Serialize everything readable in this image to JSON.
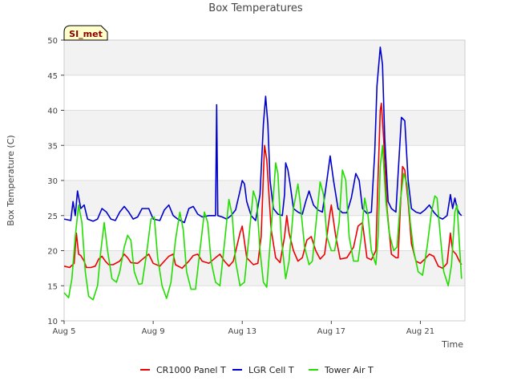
{
  "chart_data": {
    "type": "line",
    "title": "Box Temperatures",
    "xlabel": "Time",
    "ylabel": "Box Temperature (C)",
    "site_label": "SI_met",
    "x_units": "days since Aug 5",
    "xlim": [
      0,
      18
    ],
    "ylim": [
      10,
      50
    ],
    "y_ticks": [
      10,
      15,
      20,
      25,
      30,
      35,
      40,
      45,
      50
    ],
    "y_tick_labels": [
      "10",
      "15",
      "20",
      "25",
      "30",
      "35",
      "40",
      "45",
      "50"
    ],
    "x_ticks": [
      0,
      4,
      8,
      12,
      16
    ],
    "x_tick_labels": [
      "Aug 5",
      "Aug 9",
      "Aug 13",
      "Aug 17",
      "Aug 21"
    ],
    "legend_position": "bottom",
    "series": [
      {
        "name": "CR1000 Panel T",
        "color": "#ee0000",
        "points": [
          [
            0.0,
            17.8
          ],
          [
            0.25,
            17.6
          ],
          [
            0.45,
            18.2
          ],
          [
            0.55,
            22.5
          ],
          [
            0.65,
            19.5
          ],
          [
            0.75,
            19.3
          ],
          [
            0.9,
            18.5
          ],
          [
            1.0,
            17.6
          ],
          [
            1.2,
            17.6
          ],
          [
            1.4,
            17.8
          ],
          [
            1.55,
            18.8
          ],
          [
            1.7,
            19.2
          ],
          [
            1.85,
            18.5
          ],
          [
            2.0,
            18.0
          ],
          [
            2.2,
            18.0
          ],
          [
            2.5,
            18.5
          ],
          [
            2.7,
            19.5
          ],
          [
            2.85,
            19.0
          ],
          [
            3.0,
            18.3
          ],
          [
            3.3,
            18.2
          ],
          [
            3.6,
            19.0
          ],
          [
            3.8,
            19.5
          ],
          [
            4.0,
            18.2
          ],
          [
            4.3,
            17.8
          ],
          [
            4.5,
            18.5
          ],
          [
            4.7,
            19.2
          ],
          [
            4.9,
            19.5
          ],
          [
            5.0,
            18.0
          ],
          [
            5.3,
            17.5
          ],
          [
            5.6,
            18.5
          ],
          [
            5.8,
            19.3
          ],
          [
            6.0,
            19.5
          ],
          [
            6.2,
            18.5
          ],
          [
            6.5,
            18.2
          ],
          [
            6.8,
            19.0
          ],
          [
            7.0,
            19.5
          ],
          [
            7.2,
            18.5
          ],
          [
            7.4,
            17.8
          ],
          [
            7.6,
            18.5
          ],
          [
            7.9,
            22.5
          ],
          [
            8.0,
            23.5
          ],
          [
            8.2,
            19.0
          ],
          [
            8.5,
            18.0
          ],
          [
            8.7,
            18.2
          ],
          [
            8.85,
            22.0
          ],
          [
            9.0,
            35.0
          ],
          [
            9.1,
            33.0
          ],
          [
            9.3,
            23.0
          ],
          [
            9.5,
            19.0
          ],
          [
            9.7,
            18.3
          ],
          [
            9.9,
            22.0
          ],
          [
            10.0,
            25.0
          ],
          [
            10.1,
            22.5
          ],
          [
            10.3,
            20.0
          ],
          [
            10.5,
            18.5
          ],
          [
            10.7,
            19.0
          ],
          [
            10.9,
            21.5
          ],
          [
            11.1,
            22.0
          ],
          [
            11.3,
            20.0
          ],
          [
            11.5,
            18.8
          ],
          [
            11.7,
            19.5
          ],
          [
            11.9,
            24.5
          ],
          [
            12.0,
            26.5
          ],
          [
            12.2,
            22.0
          ],
          [
            12.4,
            18.8
          ],
          [
            12.7,
            19.0
          ],
          [
            13.0,
            20.5
          ],
          [
            13.2,
            23.5
          ],
          [
            13.4,
            24.0
          ],
          [
            13.6,
            19.0
          ],
          [
            13.8,
            18.7
          ],
          [
            14.0,
            20.0
          ],
          [
            14.1,
            30.5
          ],
          [
            14.2,
            40.0
          ],
          [
            14.25,
            41.0
          ],
          [
            14.35,
            36.0
          ],
          [
            14.5,
            26.0
          ],
          [
            14.7,
            19.5
          ],
          [
            14.9,
            19.0
          ],
          [
            15.0,
            19.0
          ],
          [
            15.1,
            26.0
          ],
          [
            15.2,
            32.0
          ],
          [
            15.3,
            31.5
          ],
          [
            15.45,
            27.0
          ],
          [
            15.6,
            21.0
          ],
          [
            15.8,
            18.5
          ],
          [
            16.0,
            18.2
          ],
          [
            16.2,
            18.8
          ],
          [
            16.4,
            19.5
          ],
          [
            16.6,
            19.2
          ],
          [
            16.8,
            17.8
          ],
          [
            17.0,
            17.5
          ],
          [
            17.2,
            18.2
          ],
          [
            17.35,
            22.5
          ],
          [
            17.45,
            20.0
          ],
          [
            17.6,
            19.5
          ],
          [
            17.75,
            18.5
          ],
          [
            17.85,
            18.0
          ]
        ]
      },
      {
        "name": "LGR Cell T",
        "color": "#0000cc",
        "points": [
          [
            0.0,
            24.5
          ],
          [
            0.3,
            24.3
          ],
          [
            0.4,
            27.0
          ],
          [
            0.5,
            25.0
          ],
          [
            0.6,
            28.5
          ],
          [
            0.75,
            26.0
          ],
          [
            0.9,
            26.5
          ],
          [
            1.05,
            24.5
          ],
          [
            1.3,
            24.2
          ],
          [
            1.5,
            24.5
          ],
          [
            1.7,
            26.0
          ],
          [
            1.9,
            25.5
          ],
          [
            2.1,
            24.5
          ],
          [
            2.3,
            24.3
          ],
          [
            2.5,
            25.5
          ],
          [
            2.7,
            26.3
          ],
          [
            2.9,
            25.5
          ],
          [
            3.1,
            24.5
          ],
          [
            3.3,
            24.8
          ],
          [
            3.5,
            26.0
          ],
          [
            3.8,
            26.0
          ],
          [
            4.0,
            24.5
          ],
          [
            4.3,
            24.3
          ],
          [
            4.5,
            25.8
          ],
          [
            4.7,
            26.5
          ],
          [
            4.9,
            25.0
          ],
          [
            5.1,
            24.5
          ],
          [
            5.4,
            24.0
          ],
          [
            5.6,
            26.0
          ],
          [
            5.8,
            26.3
          ],
          [
            6.0,
            25.2
          ],
          [
            6.2,
            24.8
          ],
          [
            6.5,
            25.0
          ],
          [
            6.8,
            25.0
          ],
          [
            6.85,
            40.8
          ],
          [
            6.9,
            25.0
          ],
          [
            7.1,
            24.8
          ],
          [
            7.3,
            24.5
          ],
          [
            7.5,
            25.0
          ],
          [
            7.7,
            25.8
          ],
          [
            7.9,
            28.5
          ],
          [
            8.0,
            30.0
          ],
          [
            8.1,
            29.5
          ],
          [
            8.2,
            27.0
          ],
          [
            8.4,
            25.0
          ],
          [
            8.6,
            24.3
          ],
          [
            8.8,
            28.0
          ],
          [
            8.95,
            38.0
          ],
          [
            9.05,
            42.0
          ],
          [
            9.15,
            38.0
          ],
          [
            9.25,
            30.0
          ],
          [
            9.4,
            26.0
          ],
          [
            9.6,
            25.2
          ],
          [
            9.8,
            25.0
          ],
          [
            9.9,
            28.0
          ],
          [
            9.95,
            32.5
          ],
          [
            10.05,
            31.5
          ],
          [
            10.15,
            29.5
          ],
          [
            10.3,
            26.0
          ],
          [
            10.5,
            25.5
          ],
          [
            10.7,
            25.2
          ],
          [
            10.85,
            27.0
          ],
          [
            11.0,
            28.5
          ],
          [
            11.2,
            26.5
          ],
          [
            11.4,
            25.8
          ],
          [
            11.6,
            25.5
          ],
          [
            11.8,
            30.0
          ],
          [
            11.95,
            33.5
          ],
          [
            12.1,
            30.0
          ],
          [
            12.3,
            26.0
          ],
          [
            12.5,
            25.4
          ],
          [
            12.7,
            25.4
          ],
          [
            12.9,
            27.5
          ],
          [
            13.1,
            31.0
          ],
          [
            13.25,
            30.0
          ],
          [
            13.4,
            26.0
          ],
          [
            13.6,
            25.3
          ],
          [
            13.8,
            25.5
          ],
          [
            13.95,
            34.0
          ],
          [
            14.05,
            43.5
          ],
          [
            14.2,
            49.0
          ],
          [
            14.3,
            46.5
          ],
          [
            14.4,
            36.0
          ],
          [
            14.55,
            27.0
          ],
          [
            14.7,
            26.0
          ],
          [
            14.9,
            25.5
          ],
          [
            15.0,
            31.0
          ],
          [
            15.15,
            39.0
          ],
          [
            15.3,
            38.5
          ],
          [
            15.45,
            30.0
          ],
          [
            15.6,
            26.0
          ],
          [
            15.8,
            25.5
          ],
          [
            16.0,
            25.3
          ],
          [
            16.2,
            25.8
          ],
          [
            16.4,
            26.5
          ],
          [
            16.6,
            25.5
          ],
          [
            16.8,
            24.8
          ],
          [
            17.0,
            24.5
          ],
          [
            17.2,
            25.0
          ],
          [
            17.35,
            28.0
          ],
          [
            17.45,
            26.0
          ],
          [
            17.55,
            27.5
          ],
          [
            17.65,
            26.0
          ],
          [
            17.75,
            25.3
          ],
          [
            17.85,
            25.0
          ]
        ]
      },
      {
        "name": "Tower Air T",
        "color": "#22dd00",
        "points": [
          [
            0.0,
            14.0
          ],
          [
            0.2,
            13.3
          ],
          [
            0.35,
            16.0
          ],
          [
            0.5,
            22.0
          ],
          [
            0.65,
            26.5
          ],
          [
            0.8,
            24.0
          ],
          [
            0.95,
            17.0
          ],
          [
            1.1,
            13.5
          ],
          [
            1.3,
            13.0
          ],
          [
            1.5,
            15.0
          ],
          [
            1.65,
            20.0
          ],
          [
            1.8,
            24.0
          ],
          [
            1.95,
            20.0
          ],
          [
            2.15,
            16.0
          ],
          [
            2.35,
            15.5
          ],
          [
            2.5,
            17.0
          ],
          [
            2.7,
            20.5
          ],
          [
            2.85,
            22.2
          ],
          [
            3.0,
            21.5
          ],
          [
            3.15,
            17.0
          ],
          [
            3.35,
            15.2
          ],
          [
            3.5,
            15.3
          ],
          [
            3.7,
            19.5
          ],
          [
            3.9,
            24.5
          ],
          [
            4.05,
            24.8
          ],
          [
            4.2,
            19.0
          ],
          [
            4.4,
            15.0
          ],
          [
            4.6,
            13.2
          ],
          [
            4.8,
            15.5
          ],
          [
            5.0,
            21.5
          ],
          [
            5.2,
            25.5
          ],
          [
            5.35,
            23.0
          ],
          [
            5.5,
            17.0
          ],
          [
            5.7,
            14.5
          ],
          [
            5.9,
            14.5
          ],
          [
            6.1,
            20.0
          ],
          [
            6.3,
            25.5
          ],
          [
            6.45,
            24.0
          ],
          [
            6.6,
            18.5
          ],
          [
            6.8,
            15.5
          ],
          [
            7.0,
            15.0
          ],
          [
            7.2,
            21.0
          ],
          [
            7.4,
            27.3
          ],
          [
            7.55,
            25.0
          ],
          [
            7.7,
            18.5
          ],
          [
            7.9,
            15.0
          ],
          [
            8.1,
            15.5
          ],
          [
            8.3,
            22.0
          ],
          [
            8.5,
            28.5
          ],
          [
            8.65,
            27.0
          ],
          [
            8.8,
            20.0
          ],
          [
            8.95,
            15.5
          ],
          [
            9.1,
            14.8
          ],
          [
            9.3,
            23.0
          ],
          [
            9.5,
            32.5
          ],
          [
            9.6,
            31.0
          ],
          [
            9.75,
            22.0
          ],
          [
            9.95,
            16.0
          ],
          [
            10.1,
            18.5
          ],
          [
            10.3,
            26.0
          ],
          [
            10.5,
            29.5
          ],
          [
            10.6,
            27.0
          ],
          [
            10.8,
            20.5
          ],
          [
            11.0,
            18.0
          ],
          [
            11.15,
            18.5
          ],
          [
            11.3,
            23.5
          ],
          [
            11.5,
            29.8
          ],
          [
            11.65,
            28.0
          ],
          [
            11.8,
            22.0
          ],
          [
            12.0,
            20.0
          ],
          [
            12.15,
            20.0
          ],
          [
            12.35,
            24.0
          ],
          [
            12.5,
            31.5
          ],
          [
            12.65,
            30.0
          ],
          [
            12.8,
            22.0
          ],
          [
            13.0,
            18.5
          ],
          [
            13.2,
            18.5
          ],
          [
            13.35,
            22.0
          ],
          [
            13.5,
            27.5
          ],
          [
            13.65,
            25.0
          ],
          [
            13.8,
            20.0
          ],
          [
            14.0,
            18.0
          ],
          [
            14.1,
            22.0
          ],
          [
            14.2,
            32.0
          ],
          [
            14.3,
            35.0
          ],
          [
            14.45,
            27.0
          ],
          [
            14.6,
            22.5
          ],
          [
            14.8,
            20.0
          ],
          [
            14.95,
            20.5
          ],
          [
            15.1,
            27.0
          ],
          [
            15.25,
            31.0
          ],
          [
            15.4,
            29.5
          ],
          [
            15.55,
            24.0
          ],
          [
            15.7,
            20.0
          ],
          [
            15.9,
            17.0
          ],
          [
            16.1,
            16.5
          ],
          [
            16.3,
            20.5
          ],
          [
            16.5,
            25.5
          ],
          [
            16.65,
            27.8
          ],
          [
            16.75,
            27.5
          ],
          [
            16.9,
            22.0
          ],
          [
            17.05,
            17.0
          ],
          [
            17.25,
            15.0
          ],
          [
            17.4,
            18.0
          ],
          [
            17.55,
            25.5
          ],
          [
            17.65,
            26.5
          ],
          [
            17.75,
            21.0
          ],
          [
            17.85,
            16.0
          ]
        ]
      }
    ]
  }
}
